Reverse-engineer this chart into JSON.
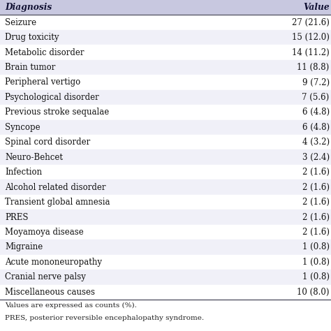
{
  "header": [
    "Diagnosis",
    "Value"
  ],
  "rows": [
    [
      "Seizure",
      "27 (21.6)"
    ],
    [
      "Drug toxicity",
      "15 (12.0)"
    ],
    [
      "Metabolic disorder",
      "14 (11.2)"
    ],
    [
      "Brain tumor",
      "11 (8.8)"
    ],
    [
      "Peripheral vertigo",
      "9 (7.2)"
    ],
    [
      "Psychological disorder",
      "7 (5.6)"
    ],
    [
      "Previous stroke sequalae",
      "6 (4.8)"
    ],
    [
      "Syncope",
      "6 (4.8)"
    ],
    [
      "Spinal cord disorder",
      "4 (3.2)"
    ],
    [
      "Neuro-Behcet",
      "3 (2.4)"
    ],
    [
      "Infection",
      "2 (1.6)"
    ],
    [
      "Alcohol related disorder",
      "2 (1.6)"
    ],
    [
      "Transient global amnesia",
      "2 (1.6)"
    ],
    [
      "PRES",
      "2 (1.6)"
    ],
    [
      "Moyamoya disease",
      "2 (1.6)"
    ],
    [
      "Migraine",
      "1 (0.8)"
    ],
    [
      "Acute mononeuropathy",
      "1 (0.8)"
    ],
    [
      "Cranial nerve palsy",
      "1 (0.8)"
    ],
    [
      "Miscellaneous causes",
      "10 (8.0)"
    ]
  ],
  "footnote1": "Values are expressed as counts (%).",
  "footnote2": "PRES, posterior reversible encephalopathy syndrome.",
  "header_bg": "#c8c8e0",
  "row_bg_odd": "#f0f0f8",
  "row_bg_even": "#ffffff",
  "header_text_color": "#111133",
  "row_text_color": "#111111",
  "border_color": "#555566",
  "font_size": 8.5,
  "header_font_size": 8.8
}
